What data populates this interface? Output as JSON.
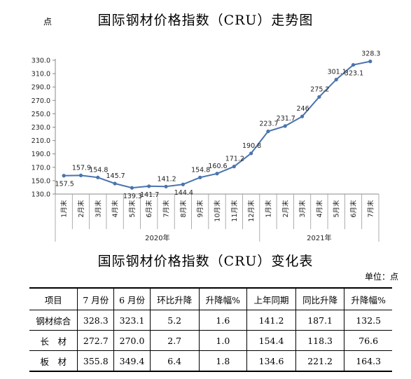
{
  "chart_title": "国际钢材价格指数（CRU）走势图",
  "unit_top": "点",
  "chart_data": {
    "type": "line",
    "title": "国际钢材价格指数（CRU）走势图",
    "ylabel": "点",
    "ylim": [
      130,
      330
    ],
    "yticks": [
      "130.0",
      "150.0",
      "170.0",
      "190.0",
      "210.0",
      "230.0",
      "250.0",
      "270.0",
      "290.0",
      "310.0",
      "330.0"
    ],
    "categories": [
      "1月末",
      "2月末",
      "3月末",
      "4月末",
      "5月末",
      "6月末",
      "7月末",
      "8月末",
      "9月末",
      "10月末",
      "11月末",
      "12月末",
      "1月末",
      "2月末",
      "3月末",
      "4月末",
      "5月末",
      "6月末",
      "7月末"
    ],
    "values": [
      157.5,
      157.9,
      154.8,
      145.7,
      139.3,
      141.7,
      141.2,
      144.4,
      154.8,
      160.6,
      171.2,
      190.8,
      223.7,
      231.7,
      246,
      275.2,
      301.1,
      323.1,
      328.3
    ],
    "value_labels": [
      "157.5",
      "157.9",
      "154.8",
      "145.7",
      "139.3",
      "141.7",
      "141.2",
      "144.4",
      "154.8",
      "160.6",
      "171.2",
      "190.8",
      "223.7",
      "231.7",
      "246",
      "275.2",
      "301.1",
      "323.1",
      "328.3"
    ],
    "groups": [
      {
        "label": "2020年",
        "count": 12
      },
      {
        "label": "2021年",
        "count": 7
      }
    ],
    "grid": false,
    "color": "#4a74ad"
  },
  "table": {
    "title": "国际钢材价格指数（CRU）变化表",
    "unit": "单位：点",
    "headers": [
      "项目",
      "7 月份",
      "6 月份",
      "环比升降",
      "升降幅%",
      "上年同期",
      "同比升降",
      "升降幅%"
    ],
    "rows": [
      [
        "钢材综合",
        "328.3",
        "323.1",
        "5.2",
        "1.6",
        "141.2",
        "187.1",
        "132.5"
      ],
      [
        "长　材",
        "272.7",
        "270.0",
        "2.7",
        "1.0",
        "154.4",
        "118.3",
        "76.6"
      ],
      [
        "板　材",
        "355.8",
        "349.4",
        "6.4",
        "1.8",
        "134.6",
        "221.2",
        "164.3"
      ]
    ]
  }
}
